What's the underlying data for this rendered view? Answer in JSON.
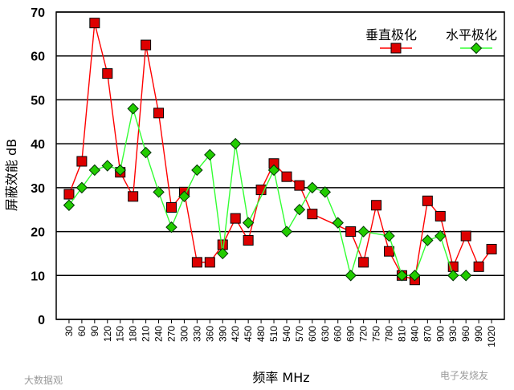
{
  "chart_data": {
    "type": "line",
    "xlabel": "频率 MHz",
    "ylabel": "屏蔽效能 dB",
    "ylim": [
      0,
      70
    ],
    "yticks": [
      0,
      10,
      20,
      30,
      40,
      50,
      60,
      70
    ],
    "grid": true,
    "legend_position": "top-right",
    "x": [
      "30",
      "60",
      "90",
      "120",
      "150",
      "180",
      "210",
      "240",
      "270",
      "300",
      "330",
      "360",
      "390",
      "420",
      "450",
      "480",
      "510",
      "540",
      "570",
      "600",
      "630",
      "660",
      "690",
      "720",
      "750",
      "780",
      "810",
      "840",
      "870",
      "900",
      "930",
      "960",
      "990",
      "1020"
    ],
    "series": [
      {
        "name": "垂直极化",
        "color": "#ff0000",
        "marker_fill": "#dd0000",
        "marker": "square",
        "values": [
          28.5,
          36,
          67.5,
          56,
          33.5,
          28,
          62.5,
          47,
          25.5,
          29,
          13,
          13,
          17,
          23,
          18,
          29.5,
          35.5,
          32.5,
          30.5,
          24,
          null,
          null,
          20,
          13,
          26,
          15.5,
          10,
          9,
          27,
          23.5,
          12,
          19,
          12,
          16
        ]
      },
      {
        "name": "水平极化",
        "color": "#33ff33",
        "marker_fill": "#22cc00",
        "marker": "diamond",
        "values": [
          26,
          30,
          34,
          35,
          34,
          48,
          38,
          29,
          21,
          28,
          34,
          37.5,
          15,
          40,
          22,
          null,
          34,
          20,
          25,
          30,
          29,
          22,
          10,
          20,
          null,
          19,
          10,
          10,
          18,
          19,
          10,
          10,
          null,
          null
        ]
      }
    ]
  },
  "watermarks": {
    "left": "大数据观",
    "right": "电子发烧友"
  }
}
